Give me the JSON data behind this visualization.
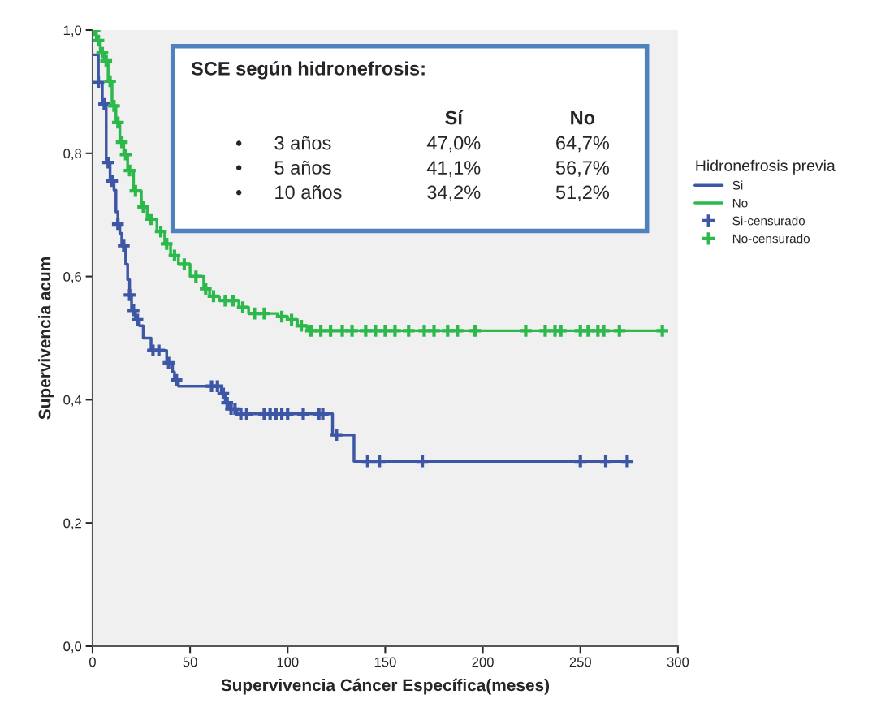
{
  "chart_data": {
    "type": "step",
    "xlabel": "Supervivencia Cáncer Específica(meses)",
    "ylabel": "Supervivencia acum",
    "legend_title": "Hidronefrosis previa",
    "legend": "right",
    "grid": false,
    "xlim": [
      0,
      300
    ],
    "xticks": [
      0,
      50,
      100,
      150,
      200,
      250,
      300
    ],
    "ylim": [
      0,
      1.0
    ],
    "yticks": [
      {
        "value": 0,
        "label": "0,0"
      },
      {
        "value": 0.2,
        "label": "0,2"
      },
      {
        "value": 0.4,
        "label": "0,4"
      },
      {
        "value": 0.6,
        "label": "0,6"
      },
      {
        "value": 0.8,
        "label": "0,8"
      },
      {
        "value": 1.0,
        "label": "1,0"
      }
    ],
    "annotations": [
      "SCE según hidronefrosis:",
      "Sí",
      "No",
      "•",
      "3 años",
      "47,0%",
      "64,7%",
      "•",
      "5 años",
      "41,1%",
      "56,7%",
      "•",
      "10 años",
      "34,2%",
      "51,2%"
    ],
    "series": [
      {
        "name": "Si",
        "color": "#3d56a6",
        "x": [
          0,
          3,
          5,
          7,
          9,
          11,
          12,
          13,
          14,
          15,
          17,
          18,
          19,
          20,
          22,
          24,
          26,
          30,
          38,
          41,
          42,
          44,
          66,
          68,
          70,
          74,
          123,
          134,
          275
        ],
        "values": [
          0.96,
          0.915,
          0.88,
          0.785,
          0.755,
          0.74,
          0.705,
          0.685,
          0.67,
          0.65,
          0.62,
          0.595,
          0.57,
          0.545,
          0.53,
          0.52,
          0.5,
          0.48,
          0.46,
          0.445,
          0.432,
          0.422,
          0.41,
          0.395,
          0.385,
          0.377,
          0.343,
          0.3,
          0.3
        ]
      },
      {
        "name": "No",
        "color": "#2db84b",
        "x": [
          0,
          2,
          4,
          6,
          8,
          10,
          12,
          14,
          16,
          18,
          21,
          25,
          28,
          33,
          37,
          40,
          44,
          50,
          57,
          60,
          65,
          75,
          80,
          95,
          100,
          105,
          110,
          292
        ],
        "values": [
          1.0,
          0.983,
          0.963,
          0.95,
          0.917,
          0.877,
          0.85,
          0.818,
          0.798,
          0.772,
          0.739,
          0.713,
          0.693,
          0.673,
          0.653,
          0.634,
          0.62,
          0.6,
          0.58,
          0.568,
          0.561,
          0.55,
          0.54,
          0.535,
          0.53,
          0.52,
          0.512,
          0.512
        ]
      },
      {
        "name": "Si-censurado",
        "type": "scatter",
        "marker": "cross",
        "color": "#3d56a6",
        "x": [
          3,
          6,
          8,
          10,
          13,
          16,
          19,
          21,
          23,
          31,
          34,
          39,
          43,
          61,
          64,
          67,
          69,
          71,
          73,
          76,
          79,
          88,
          91,
          94,
          97,
          100,
          108,
          116,
          118,
          125,
          141,
          147,
          169,
          250,
          263,
          274
        ],
        "values": [
          0.915,
          0.88,
          0.785,
          0.755,
          0.685,
          0.65,
          0.57,
          0.545,
          0.53,
          0.48,
          0.48,
          0.46,
          0.432,
          0.422,
          0.422,
          0.41,
          0.395,
          0.385,
          0.385,
          0.377,
          0.377,
          0.377,
          0.377,
          0.377,
          0.377,
          0.377,
          0.377,
          0.377,
          0.377,
          0.343,
          0.3,
          0.3,
          0.3,
          0.3,
          0.3,
          0.3
        ]
      },
      {
        "name": "No-censurado",
        "type": "scatter",
        "marker": "cross",
        "color": "#2db84b",
        "x": [
          1,
          3,
          5,
          7,
          9,
          11,
          13,
          15,
          17,
          19,
          22,
          26,
          30,
          35,
          38,
          42,
          47,
          53,
          58,
          62,
          68,
          72,
          77,
          83,
          88,
          97,
          102,
          107,
          112,
          117,
          122,
          128,
          133,
          140,
          145,
          150,
          155,
          162,
          170,
          175,
          182,
          187,
          196,
          222,
          232,
          237,
          240,
          250,
          254,
          259,
          262,
          270,
          292
        ],
        "values": [
          1.0,
          0.983,
          0.963,
          0.95,
          0.917,
          0.877,
          0.85,
          0.818,
          0.798,
          0.772,
          0.739,
          0.713,
          0.693,
          0.673,
          0.653,
          0.634,
          0.62,
          0.6,
          0.58,
          0.568,
          0.561,
          0.561,
          0.55,
          0.54,
          0.54,
          0.535,
          0.53,
          0.52,
          0.512,
          0.512,
          0.512,
          0.512,
          0.512,
          0.512,
          0.512,
          0.512,
          0.512,
          0.512,
          0.512,
          0.512,
          0.512,
          0.512,
          0.512,
          0.512,
          0.512,
          0.512,
          0.512,
          0.512,
          0.512,
          0.512,
          0.512,
          0.512,
          0.512
        ]
      }
    ]
  }
}
